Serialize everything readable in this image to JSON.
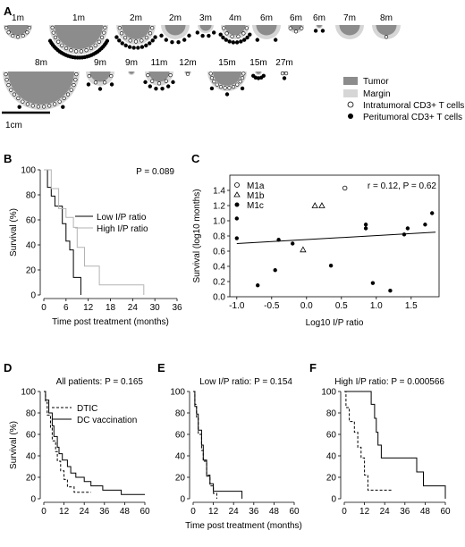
{
  "panel_letters": [
    "A",
    "B",
    "C",
    "D",
    "E",
    "F"
  ],
  "panelA": {
    "tumors_row1": [
      {
        "label": "1m",
        "size": "small",
        "intra": 7,
        "peri": 0
      },
      {
        "label": "1m",
        "size": "large",
        "intra": 16,
        "peri": 30
      },
      {
        "label": "2m",
        "size": "medium",
        "intra": 9,
        "peri": 12
      },
      {
        "label": "2m",
        "size": "small",
        "intra": 0,
        "peri": 6
      },
      {
        "label": "3m",
        "size": "tiny",
        "intra": 0,
        "peri": 4
      },
      {
        "label": "4m",
        "size": "small",
        "intra": 6,
        "peri": 10
      },
      {
        "label": "6m",
        "size": "small",
        "intra": 0,
        "peri": 2
      },
      {
        "label": "6m",
        "size": "tiny",
        "intra": 3,
        "peri": 0
      },
      {
        "label": "6m",
        "size": "dot",
        "intra": 0,
        "peri": 2
      },
      {
        "label": "7m",
        "size": "small",
        "intra": 0,
        "peri": 0
      },
      {
        "label": "8m",
        "size": "small",
        "intra": 1,
        "peri": 0
      }
    ],
    "tumors_row2": [
      {
        "label": "8m",
        "size": "huge",
        "intra": 20,
        "peri": 2
      },
      {
        "label": "9m",
        "size": "small",
        "intra": 4,
        "peri": 3
      },
      {
        "label": "9m",
        "size": "dot",
        "intra": 0,
        "peri": 0
      },
      {
        "label": "11m",
        "size": "small",
        "intra": 5,
        "peri": 6
      },
      {
        "label": "12m",
        "size": "dot",
        "intra": 1,
        "peri": 0
      },
      {
        "label": "15m",
        "size": "medium",
        "intra": 12,
        "peri": 3
      },
      {
        "label": "15m",
        "size": "dot",
        "intra": 0,
        "peri": 5
      },
      {
        "label": "27m",
        "size": "dot",
        "intra": 2,
        "peri": 1
      }
    ],
    "legend": [
      "Tumor",
      "Margin",
      "Intratumoral CD3+ T cells",
      "Peritumoral CD3+ T cells"
    ],
    "scale_bar_label": "1cm"
  },
  "chart_data": [
    {
      "panel": "B",
      "type": "line",
      "annotation": "P = 0.089",
      "xlabel": "Time post treatment (months)",
      "ylabel": "Survival (%)",
      "xlim": [
        0,
        36
      ],
      "ylim": [
        0,
        100
      ],
      "xticks": [
        0,
        6,
        12,
        18,
        24,
        30,
        36
      ],
      "yticks": [
        0,
        20,
        40,
        60,
        80,
        100
      ],
      "series": [
        {
          "name": "Low I/P ratio",
          "color": "#000000",
          "dash": "solid",
          "steps": [
            [
              0,
              100
            ],
            [
              1,
              100
            ],
            [
              1,
              86
            ],
            [
              2,
              86
            ],
            [
              2,
              79
            ],
            [
              3,
              79
            ],
            [
              3,
              71
            ],
            [
              5,
              71
            ],
            [
              5,
              57
            ],
            [
              6,
              57
            ],
            [
              6,
              43
            ],
            [
              7,
              43
            ],
            [
              7,
              36
            ],
            [
              8,
              36
            ],
            [
              8,
              14
            ],
            [
              10,
              14
            ],
            [
              10,
              0
            ]
          ]
        },
        {
          "name": "High I/P ratio",
          "color": "#b3b3b3",
          "dash": "solid",
          "steps": [
            [
              0,
              100
            ],
            [
              2,
              100
            ],
            [
              2,
              85
            ],
            [
              4,
              85
            ],
            [
              4,
              69
            ],
            [
              6,
              69
            ],
            [
              6,
              62
            ],
            [
              8,
              62
            ],
            [
              8,
              54
            ],
            [
              9,
              54
            ],
            [
              9,
              38
            ],
            [
              11,
              38
            ],
            [
              11,
              23
            ],
            [
              15,
              23
            ],
            [
              15,
              8
            ],
            [
              27,
              8
            ],
            [
              27,
              0
            ]
          ]
        }
      ]
    },
    {
      "panel": "C",
      "type": "scatter",
      "annotation": "r = 0.12, P = 0.62",
      "xlabel": "Log10 I/P ratio",
      "ylabel": "Survival (log10 months)",
      "xlim": [
        -1.1,
        1.9
      ],
      "ylim": [
        0,
        1.6
      ],
      "xticks": [
        "-1.0",
        "-0.5",
        "0.0",
        "0.5",
        "1.0",
        "1.5"
      ],
      "yticks": [
        "0.0",
        "0.2",
        "0.4",
        "0.6",
        "0.8",
        "1.0",
        "1.2",
        "1.4"
      ],
      "series": [
        {
          "name": "M1a",
          "marker": "circle-open",
          "points": [
            [
              0.55,
              1.43
            ]
          ]
        },
        {
          "name": "M1b",
          "marker": "triangle-open",
          "points": [
            [
              -0.05,
              0.62
            ],
            [
              0.12,
              1.2
            ],
            [
              0.22,
              1.2
            ]
          ]
        },
        {
          "name": "M1c",
          "marker": "circle-filled",
          "points": [
            [
              -1.0,
              1.03
            ],
            [
              -1.0,
              0.77
            ],
            [
              -0.7,
              0.15
            ],
            [
              -0.45,
              0.35
            ],
            [
              -0.4,
              0.75
            ],
            [
              -0.2,
              0.7
            ],
            [
              0.35,
              0.41
            ],
            [
              0.85,
              0.95
            ],
            [
              0.85,
              0.9
            ],
            [
              0.95,
              0.18
            ],
            [
              1.2,
              0.08
            ],
            [
              1.4,
              0.82
            ],
            [
              1.45,
              0.9
            ],
            [
              1.7,
              0.95
            ],
            [
              1.8,
              1.1
            ]
          ]
        }
      ],
      "regression": {
        "x": [
          -1.0,
          1.85
        ],
        "y": [
          0.7,
          0.85
        ]
      }
    },
    {
      "panel": "D",
      "type": "line",
      "annotation": "All patients: P = 0.165",
      "ylabel": "Survival (%)",
      "xlim": [
        0,
        60
      ],
      "ylim": [
        0,
        100
      ],
      "xticks": [
        0,
        12,
        24,
        36,
        48,
        60
      ],
      "yticks": [
        0,
        20,
        40,
        60,
        80,
        100
      ],
      "series": [
        {
          "name": "DTIC",
          "color": "#000000",
          "dash": "dashed",
          "steps": [
            [
              0,
              100
            ],
            [
              1,
              100
            ],
            [
              1,
              90
            ],
            [
              2,
              90
            ],
            [
              2,
              78
            ],
            [
              4,
              78
            ],
            [
              4,
              66
            ],
            [
              5,
              66
            ],
            [
              5,
              54
            ],
            [
              7,
              54
            ],
            [
              7,
              44
            ],
            [
              8,
              44
            ],
            [
              8,
              35
            ],
            [
              10,
              35
            ],
            [
              10,
              26
            ],
            [
              12,
              26
            ],
            [
              12,
              18
            ],
            [
              14,
              18
            ],
            [
              14,
              11
            ],
            [
              18,
              11
            ],
            [
              18,
              6
            ],
            [
              28,
              6
            ]
          ]
        },
        {
          "name": "DC vaccination",
          "color": "#000000",
          "dash": "solid",
          "steps": [
            [
              0,
              100
            ],
            [
              1,
              100
            ],
            [
              1,
              92
            ],
            [
              3,
              92
            ],
            [
              3,
              80
            ],
            [
              5,
              80
            ],
            [
              5,
              68
            ],
            [
              6,
              68
            ],
            [
              6,
              58
            ],
            [
              8,
              58
            ],
            [
              8,
              48
            ],
            [
              9,
              48
            ],
            [
              9,
              42
            ],
            [
              11,
              42
            ],
            [
              11,
              36
            ],
            [
              14,
              36
            ],
            [
              14,
              30
            ],
            [
              16,
              30
            ],
            [
              16,
              24
            ],
            [
              19,
              24
            ],
            [
              19,
              20
            ],
            [
              24,
              20
            ],
            [
              24,
              16
            ],
            [
              28,
              16
            ],
            [
              28,
              12
            ],
            [
              35,
              12
            ],
            [
              35,
              8
            ],
            [
              46,
              8
            ],
            [
              46,
              4
            ],
            [
              60,
              4
            ]
          ]
        }
      ]
    },
    {
      "panel": "E",
      "type": "line",
      "annotation": "Low I/P ratio: P = 0.154",
      "xlabel": "Time post treatment (months)",
      "xlim": [
        0,
        60
      ],
      "ylim": [
        0,
        100
      ],
      "xticks": [
        0,
        12,
        24,
        36,
        48,
        60
      ],
      "yticks": [
        0,
        20,
        40,
        60,
        80,
        100
      ],
      "series": [
        {
          "name": "DTIC",
          "color": "#000000",
          "dash": "dashed",
          "steps": [
            [
              0,
              100
            ],
            [
              1,
              100
            ],
            [
              1,
              88
            ],
            [
              2,
              88
            ],
            [
              2,
              75
            ],
            [
              3,
              75
            ],
            [
              3,
              60
            ],
            [
              5,
              60
            ],
            [
              5,
              45
            ],
            [
              6,
              45
            ],
            [
              6,
              35
            ],
            [
              8,
              35
            ],
            [
              8,
              22
            ],
            [
              10,
              22
            ],
            [
              10,
              12
            ],
            [
              12,
              12
            ],
            [
              12,
              5
            ],
            [
              14,
              5
            ],
            [
              14,
              0
            ]
          ]
        },
        {
          "name": "DC vaccination",
          "color": "#000000",
          "dash": "solid",
          "steps": [
            [
              0,
              100
            ],
            [
              1,
              100
            ],
            [
              1,
              86
            ],
            [
              2,
              86
            ],
            [
              2,
              79
            ],
            [
              3,
              79
            ],
            [
              3,
              64
            ],
            [
              5,
              64
            ],
            [
              5,
              50
            ],
            [
              6,
              50
            ],
            [
              6,
              36
            ],
            [
              8,
              36
            ],
            [
              8,
              21
            ],
            [
              10,
              21
            ],
            [
              10,
              14
            ],
            [
              12,
              14
            ],
            [
              12,
              7
            ],
            [
              16,
              7
            ],
            [
              16,
              7
            ],
            [
              29,
              7
            ],
            [
              29,
              0
            ]
          ]
        }
      ]
    },
    {
      "panel": "F",
      "type": "line",
      "annotation": "High I/P ratio: P = 0.000566",
      "xlim": [
        0,
        60
      ],
      "ylim": [
        0,
        100
      ],
      "xticks": [
        0,
        12,
        24,
        36,
        48,
        60
      ],
      "yticks": [
        0,
        20,
        40,
        60,
        80,
        100
      ],
      "series": [
        {
          "name": "DTIC",
          "color": "#000000",
          "dash": "dashed",
          "steps": [
            [
              0,
              100
            ],
            [
              1,
              100
            ],
            [
              1,
              85
            ],
            [
              3,
              85
            ],
            [
              3,
              72
            ],
            [
              6,
              72
            ],
            [
              6,
              62
            ],
            [
              8,
              62
            ],
            [
              8,
              48
            ],
            [
              10,
              48
            ],
            [
              10,
              38
            ],
            [
              12,
              38
            ],
            [
              12,
              22
            ],
            [
              14,
              22
            ],
            [
              14,
              8
            ],
            [
              20,
              8
            ],
            [
              20,
              8
            ],
            [
              28,
              8
            ]
          ]
        },
        {
          "name": "DC vaccination",
          "color": "#000000",
          "dash": "solid",
          "steps": [
            [
              0,
              100
            ],
            [
              8,
              100
            ],
            [
              8,
              100
            ],
            [
              16,
              100
            ],
            [
              16,
              88
            ],
            [
              18,
              88
            ],
            [
              18,
              75
            ],
            [
              19,
              75
            ],
            [
              19,
              62
            ],
            [
              20,
              62
            ],
            [
              20,
              50
            ],
            [
              22,
              50
            ],
            [
              22,
              38
            ],
            [
              43,
              38
            ],
            [
              43,
              25
            ],
            [
              47,
              25
            ],
            [
              47,
              12
            ],
            [
              60,
              12
            ],
            [
              60,
              0
            ]
          ]
        }
      ]
    }
  ],
  "labels": {
    "B_legend_low": "Low I/P ratio",
    "B_legend_high": "High I/P ratio",
    "C_legend_m1a": "M1a",
    "C_legend_m1b": "M1b",
    "C_legend_m1c": "M1c",
    "D_legend_dtic": "DTIC",
    "D_legend_dc": "DC vaccination"
  }
}
